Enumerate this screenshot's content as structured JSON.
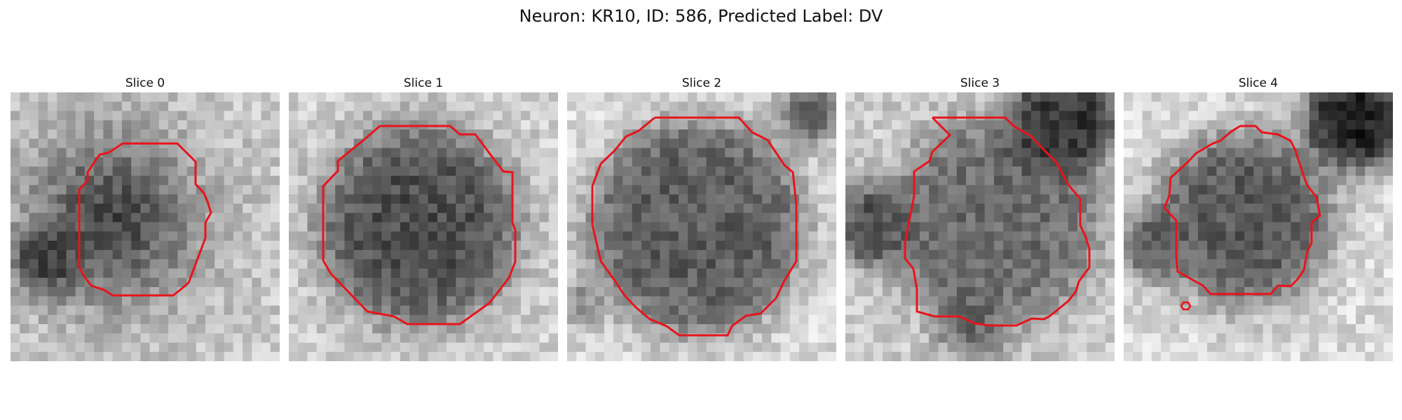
{
  "figure": {
    "title": "Neuron: KR10, ID: 586, Predicted Label: DV",
    "colors": {
      "contour": "#e8141b",
      "background": "#ffffff"
    },
    "colormap": "gray"
  },
  "panels": [
    {
      "title": "Slice 0"
    },
    {
      "title": "Slice 1"
    },
    {
      "title": "Slice 2"
    },
    {
      "title": "Slice 3"
    },
    {
      "title": "Slice 4"
    }
  ]
}
